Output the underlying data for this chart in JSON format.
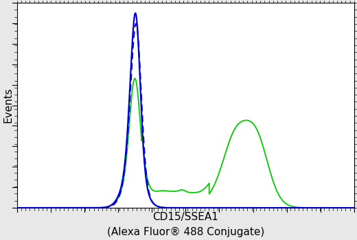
{
  "ylabel": "Events",
  "xlabel_line1": "CD15/SSEA1",
  "xlabel_line2": "(Alexa Fluor® 488 Conjugate)",
  "blue_color": "#0000dd",
  "green_color": "#00cc00",
  "background_color": "#e8e8e8",
  "plot_bg_color": "#ffffff",
  "xlim": [
    0,
    1000
  ],
  "ylim": [
    0,
    1000
  ],
  "axis_label_fontsize": 11
}
